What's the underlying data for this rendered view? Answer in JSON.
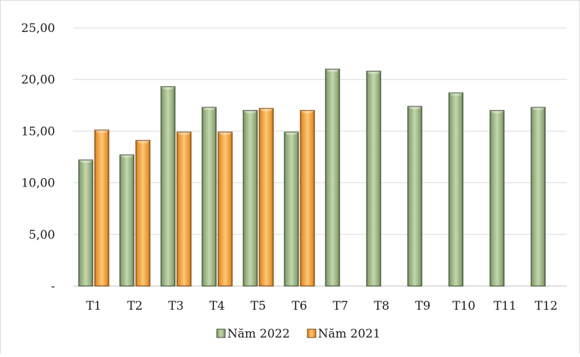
{
  "chart_data": {
    "type": "bar",
    "title": "",
    "xlabel": "",
    "ylabel": "",
    "categories": [
      "T1",
      "T2",
      "T3",
      "T4",
      "T5",
      "T6",
      "T7",
      "T8",
      "T9",
      "T10",
      "T11",
      "T12"
    ],
    "series": [
      {
        "name": "Năm 2022",
        "color": "#9bb383",
        "values": [
          12.2,
          12.7,
          19.3,
          17.3,
          17.0,
          14.9,
          21.0,
          20.8,
          17.4,
          18.7,
          17.0,
          17.3
        ]
      },
      {
        "name": "Năm 2021",
        "color": "#f2a33a",
        "values": [
          15.1,
          14.1,
          14.9,
          14.9,
          17.2,
          17.0,
          null,
          null,
          null,
          null,
          null,
          null
        ]
      }
    ],
    "ylim": [
      0,
      25
    ],
    "yticks": [
      0,
      5,
      10,
      15,
      20,
      25
    ],
    "ytick_labels": [
      "-",
      "5,00",
      "10,00",
      "15,00",
      "20,00",
      "25,00"
    ],
    "grid": true,
    "legend_position": "bottom"
  }
}
